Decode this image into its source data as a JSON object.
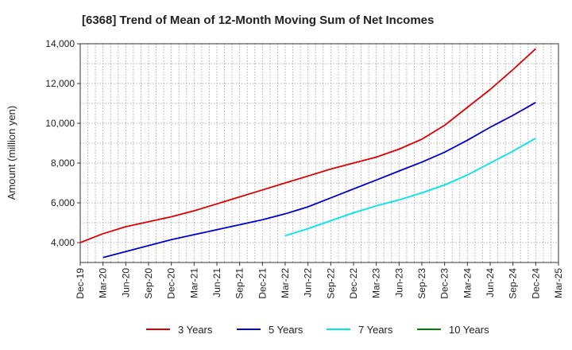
{
  "chart_data": {
    "type": "line",
    "title": "[6368]  Trend of Mean of 12-Month Moving Sum of Net Incomes",
    "ylabel": "Amount (million yen)",
    "xlabel": "",
    "x_ticks": [
      "Dec-19",
      "Mar-20",
      "Jun-20",
      "Sep-20",
      "Dec-20",
      "Mar-21",
      "Jun-21",
      "Sep-21",
      "Dec-21",
      "Mar-22",
      "Jun-22",
      "Sep-22",
      "Dec-22",
      "Mar-23",
      "Jun-23",
      "Sep-23",
      "Dec-23",
      "Mar-24",
      "Jun-24",
      "Sep-24",
      "Dec-24",
      "Mar-25"
    ],
    "y_ticks": [
      "4,000",
      "6,000",
      "8,000",
      "10,000",
      "12,000",
      "14,000"
    ],
    "ylim": [
      3000,
      14000
    ],
    "grid": true,
    "legend_position": "bottom",
    "series": [
      {
        "name": "3 Years",
        "color": "#dd0000",
        "x": [
          "Dec-19",
          "Mar-20",
          "Jun-20",
          "Sep-20",
          "Dec-20",
          "Mar-21",
          "Jun-21",
          "Sep-21",
          "Dec-21",
          "Mar-22",
          "Jun-22",
          "Sep-22",
          "Dec-22",
          "Mar-23",
          "Jun-23",
          "Sep-23",
          "Dec-23",
          "Mar-24",
          "Jun-24",
          "Sep-24",
          "Dec-24"
        ],
        "values": [
          4000,
          4450,
          4800,
          5050,
          5300,
          5600,
          5950,
          6300,
          6650,
          7000,
          7350,
          7700,
          8000,
          8300,
          8700,
          9200,
          9900,
          10800,
          11700,
          12700,
          13750
        ]
      },
      {
        "name": "5 Years",
        "color": "#0000cc",
        "x": [
          "Mar-20",
          "Jun-20",
          "Sep-20",
          "Dec-20",
          "Mar-21",
          "Jun-21",
          "Sep-21",
          "Dec-21",
          "Mar-22",
          "Jun-22",
          "Sep-22",
          "Dec-22",
          "Mar-23",
          "Jun-23",
          "Sep-23",
          "Dec-23",
          "Mar-24",
          "Jun-24",
          "Sep-24",
          "Dec-24"
        ],
        "values": [
          3250,
          3550,
          3850,
          4150,
          4400,
          4650,
          4900,
          5150,
          5450,
          5800,
          6250,
          6700,
          7150,
          7600,
          8050,
          8550,
          9150,
          9800,
          10400,
          11050
        ]
      },
      {
        "name": "7 Years",
        "color": "#00e5e5",
        "x": [
          "Mar-22",
          "Jun-22",
          "Sep-22",
          "Dec-22",
          "Mar-23",
          "Jun-23",
          "Sep-23",
          "Dec-23",
          "Mar-24",
          "Jun-24",
          "Sep-24",
          "Dec-24"
        ],
        "values": [
          4350,
          4700,
          5100,
          5500,
          5850,
          6150,
          6500,
          6900,
          7400,
          8000,
          8600,
          9250
        ]
      },
      {
        "name": "10 Years",
        "color": "#008000",
        "x": [],
        "values": []
      }
    ]
  }
}
